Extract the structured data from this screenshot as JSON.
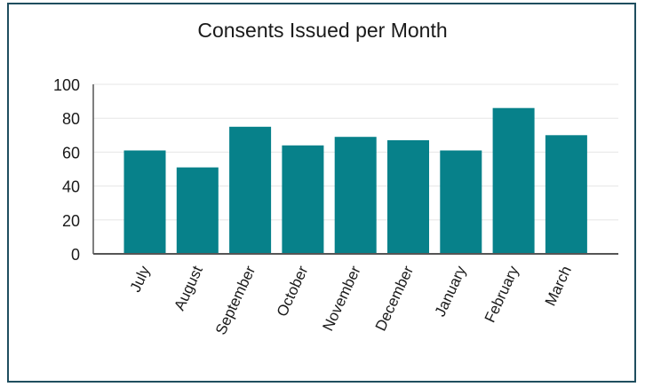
{
  "chart_data": {
    "type": "bar",
    "title": "Consents Issued per Month",
    "xlabel": "",
    "ylabel": "",
    "categories": [
      "July",
      "August",
      "September",
      "October",
      "November",
      "December",
      "January",
      "February",
      "March"
    ],
    "values": [
      61,
      51,
      75,
      64,
      69,
      67,
      61,
      86,
      70
    ],
    "ylim": [
      0,
      100
    ],
    "yticks": [
      "0",
      "20",
      "40",
      "60",
      "80",
      "100"
    ],
    "grid": true,
    "legend": "none",
    "bar_color": "#07818a",
    "axis_color": "#555555",
    "grid_color": "#e6e6e6"
  }
}
